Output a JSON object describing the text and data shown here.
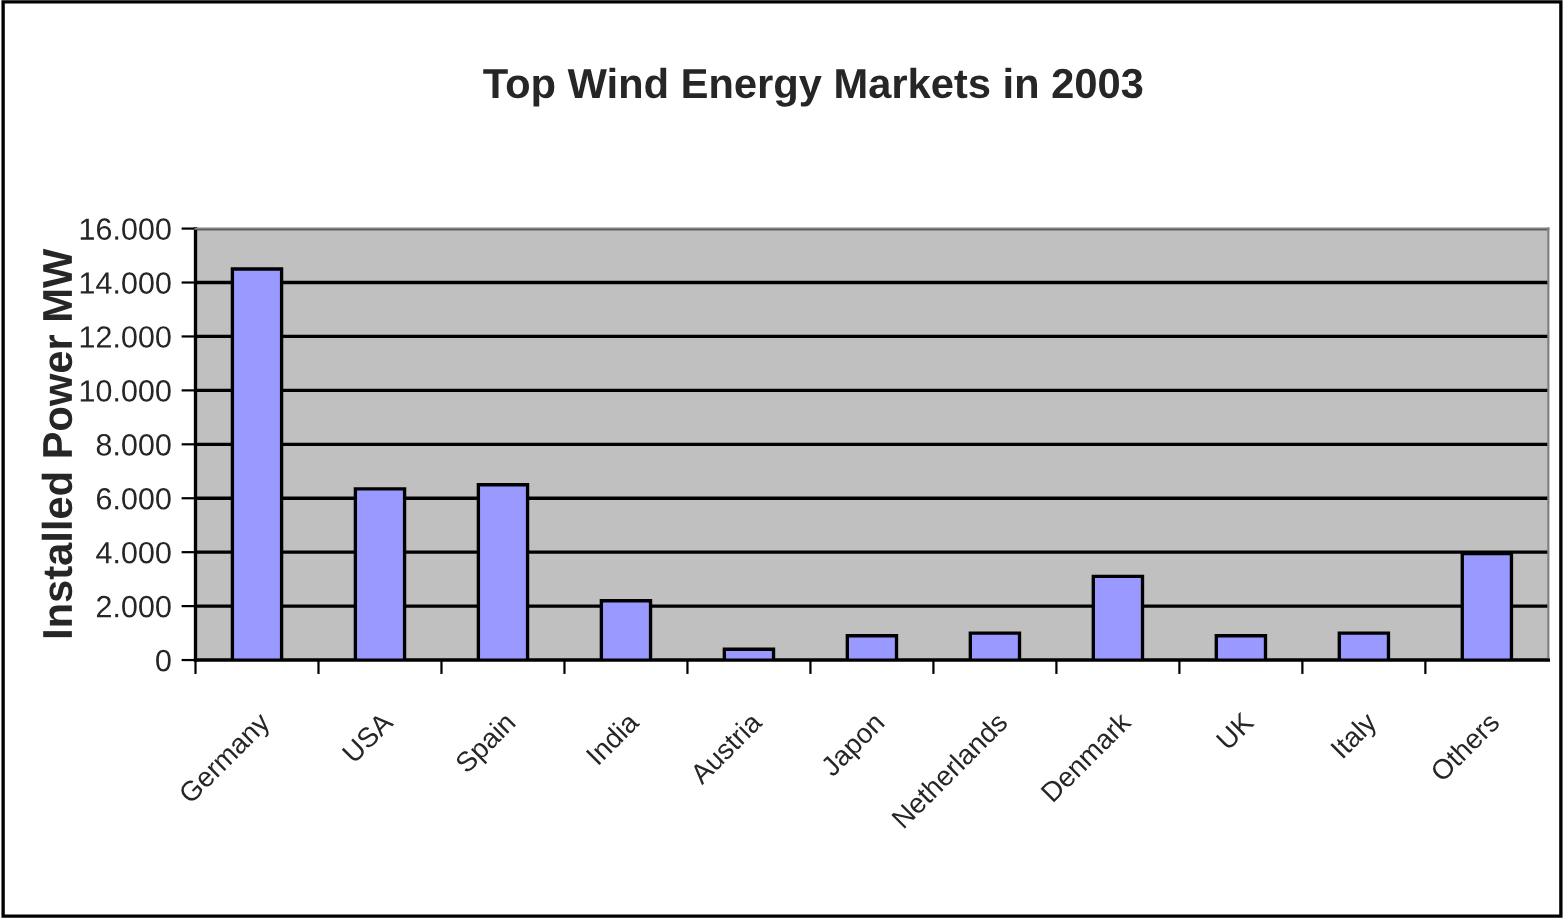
{
  "chart_data": {
    "type": "bar",
    "title": "Top Wind Energy Markets in 2003",
    "ylabel": "Installed Power MW",
    "categories": [
      "Germany",
      "USA",
      "Spain",
      "India",
      "Austria",
      "Japon",
      "Netherlands",
      "Denmark",
      "UK",
      "Italy",
      "Others"
    ],
    "values": [
      14500,
      6350,
      6500,
      2200,
      400,
      900,
      1000,
      3100,
      900,
      1000,
      3950
    ],
    "color": "#9999ff",
    "ylim": [
      0,
      16000
    ],
    "yticks": [
      0,
      {
        "value": 2000,
        "label": "2.000"
      },
      {
        "value": 4000,
        "label": "4.000"
      },
      {
        "value": 6000,
        "label": "6.000"
      },
      {
        "value": 8000,
        "label": "8.000"
      },
      {
        "value": 10000,
        "label": "10.000"
      },
      {
        "value": 12000,
        "label": "12.000"
      },
      {
        "value": 14000,
        "label": "14.000"
      },
      {
        "value": 16000,
        "label": "16.000"
      }
    ],
    "grid": "y",
    "legend": false
  }
}
